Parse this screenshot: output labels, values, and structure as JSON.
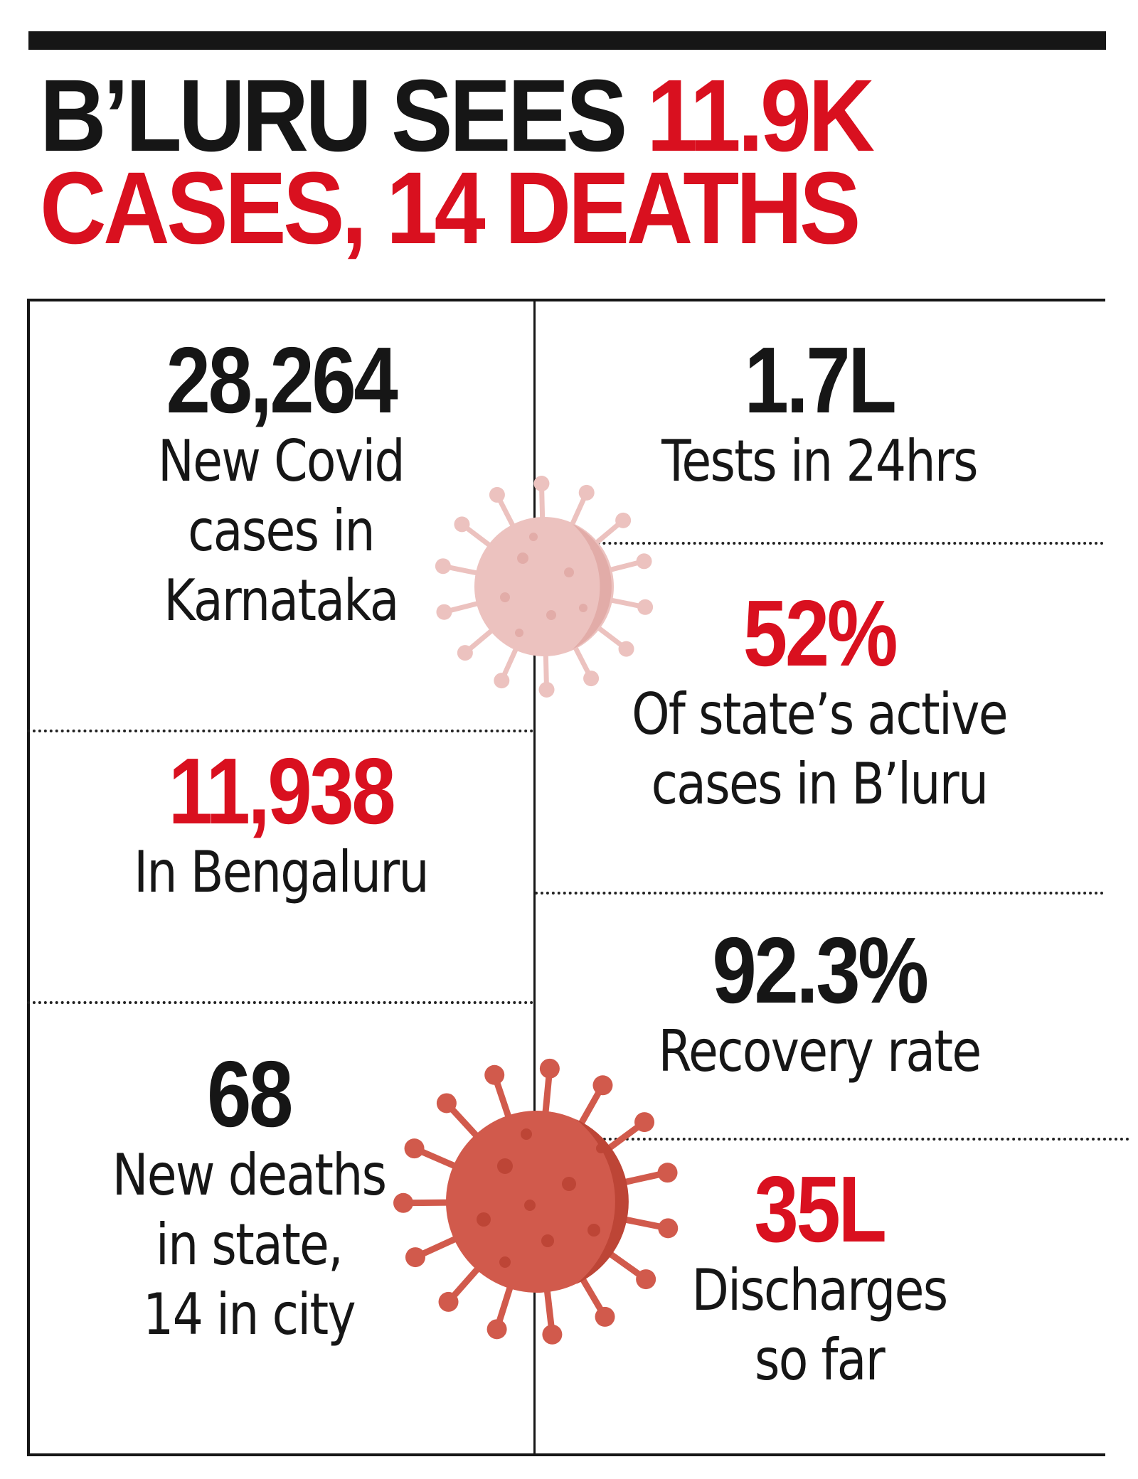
{
  "headline": {
    "part1": "B’LURU SEES ",
    "part1_highlight": "11.9K",
    "part2_highlight": "CASES, 14 DEATHS"
  },
  "stats_left": [
    {
      "value": "28,264",
      "label": "New Covid\ncases in\nKarnataka",
      "color": "#161616"
    },
    {
      "value": "11,938",
      "label": "In Bengaluru",
      "color": "#d9101f"
    },
    {
      "value": "68",
      "label": "New deaths\nin state,\n14 in city",
      "color": "#161616"
    }
  ],
  "stats_right": [
    {
      "value": "1.7L",
      "label": "Tests in 24hrs",
      "color": "#161616"
    },
    {
      "value": "52%",
      "label": "Of state’s active\ncases in B’luru",
      "color": "#d9101f"
    },
    {
      "value": "92.3%",
      "label": "Recovery rate",
      "color": "#161616"
    },
    {
      "value": "35L",
      "label": "Discharges\nso far",
      "color": "#d9101f"
    }
  ],
  "decorations": {
    "virus_icons": [
      "virus-icon-faded",
      "virus-icon"
    ]
  },
  "colors": {
    "accent_red": "#d9101f",
    "text_dark": "#161616",
    "virus_light": "#ecc2bf",
    "virus_dark": "#d15a4c"
  }
}
